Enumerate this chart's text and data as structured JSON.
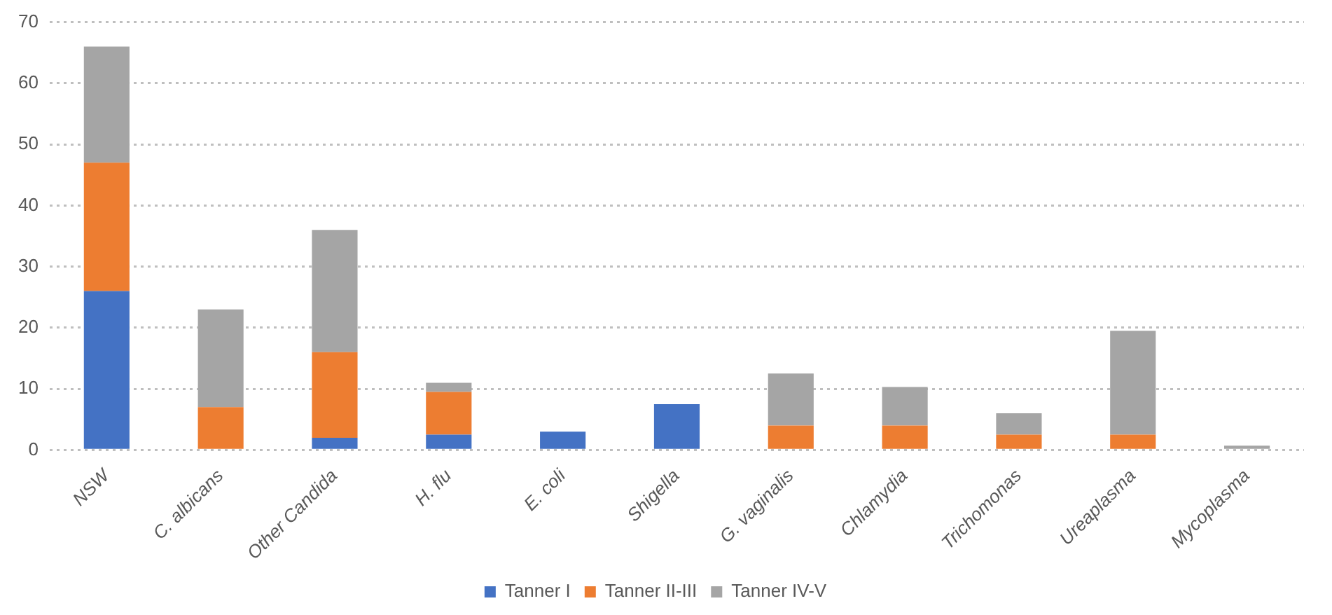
{
  "chart_data": {
    "type": "bar",
    "stacked": true,
    "categories": [
      "NSW",
      "C. albicans",
      "Other Candida",
      "H. flu",
      "E. coli",
      "Shigella",
      "G. vaginalis",
      "Chlamydia",
      "Trichomonas",
      "Ureaplasma",
      "Mycoplasma"
    ],
    "series": [
      {
        "name": "Tanner I",
        "color": "#4472c4",
        "values": [
          26,
          0,
          2,
          2.5,
          3,
          7.5,
          0,
          0,
          0,
          0,
          0
        ]
      },
      {
        "name": "Tanner II-III",
        "color": "#ed7d31",
        "values": [
          21,
          7,
          14,
          7,
          0,
          0,
          4,
          4,
          2.5,
          2.5,
          0
        ]
      },
      {
        "name": "Tanner IV-V",
        "color": "#a5a5a5",
        "values": [
          19,
          16,
          20,
          1.5,
          0,
          0,
          8.5,
          6.3,
          3.5,
          17,
          0.7
        ]
      }
    ],
    "ylim": [
      0,
      70
    ],
    "yticks": [
      0,
      10,
      20,
      30,
      40,
      50,
      60,
      70
    ],
    "grid": "y",
    "legend": "bottom",
    "line_style": "dotted"
  }
}
